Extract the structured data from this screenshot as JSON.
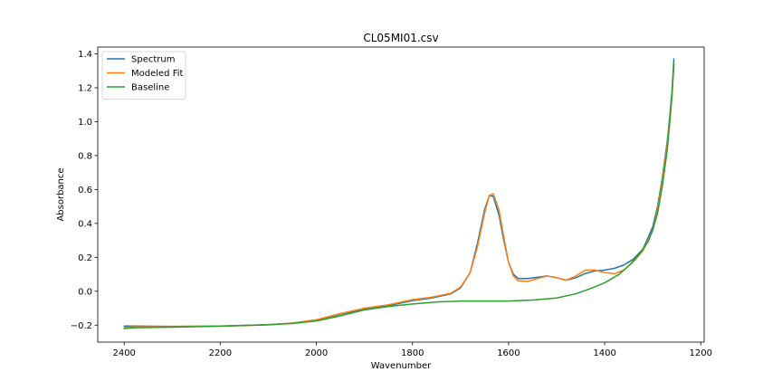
{
  "chart_data": {
    "type": "line",
    "title": "CL05MI01.csv",
    "xlabel": "Wavenumber",
    "ylabel": "Absorbance",
    "xlim": [
      2455,
      1193
    ],
    "ylim": [
      -0.3,
      1.44
    ],
    "x_reversed": true,
    "xticks": [
      2400,
      2200,
      2000,
      1800,
      1600,
      1400,
      1200
    ],
    "xtick_labels": [
      "2400",
      "2200",
      "2000",
      "1800",
      "1600",
      "1400",
      "1200"
    ],
    "yticks": [
      -0.2,
      0.0,
      0.2,
      0.4,
      0.6,
      0.8,
      1.0,
      1.2,
      1.4
    ],
    "ytick_labels": [
      "−0.2",
      "0.0",
      "0.2",
      "0.4",
      "0.6",
      "0.8",
      "1.0",
      "1.2",
      "1.4"
    ],
    "grid": false,
    "legend_position": "top-left",
    "series": [
      {
        "name": "Spectrum",
        "color": "#1f77b4",
        "x": [
          2400,
          2380,
          2300,
          2200,
          2100,
          2050,
          2000,
          1950,
          1900,
          1850,
          1800,
          1760,
          1720,
          1700,
          1680,
          1665,
          1650,
          1640,
          1632,
          1620,
          1610,
          1600,
          1590,
          1580,
          1560,
          1540,
          1520,
          1500,
          1480,
          1460,
          1440,
          1420,
          1400,
          1380,
          1360,
          1340,
          1320,
          1300,
          1290,
          1280,
          1270,
          1265,
          1260,
          1256
        ],
        "y": [
          -0.205,
          -0.205,
          -0.207,
          -0.205,
          -0.197,
          -0.188,
          -0.17,
          -0.135,
          -0.105,
          -0.085,
          -0.055,
          -0.04,
          -0.015,
          0.02,
          0.11,
          0.28,
          0.48,
          0.565,
          0.56,
          0.45,
          0.3,
          0.17,
          0.1,
          0.075,
          0.075,
          0.082,
          0.09,
          0.08,
          0.065,
          0.08,
          0.105,
          0.12,
          0.125,
          0.135,
          0.155,
          0.19,
          0.25,
          0.38,
          0.5,
          0.67,
          0.88,
          1.02,
          1.18,
          1.37
        ]
      },
      {
        "name": "Modeled Fit",
        "color": "#ff7f0e",
        "x": [
          2400,
          2380,
          2300,
          2200,
          2100,
          2050,
          2000,
          1950,
          1900,
          1850,
          1800,
          1760,
          1720,
          1700,
          1680,
          1665,
          1650,
          1640,
          1632,
          1620,
          1610,
          1600,
          1590,
          1580,
          1560,
          1540,
          1520,
          1500,
          1480,
          1460,
          1440,
          1420,
          1400,
          1380,
          1360,
          1340,
          1320,
          1300,
          1290,
          1280,
          1270,
          1265,
          1260,
          1256
        ],
        "y": [
          -0.213,
          -0.21,
          -0.21,
          -0.206,
          -0.198,
          -0.188,
          -0.168,
          -0.132,
          -0.1,
          -0.08,
          -0.05,
          -0.035,
          -0.012,
          0.025,
          0.11,
          0.26,
          0.46,
          0.565,
          0.575,
          0.48,
          0.32,
          0.17,
          0.09,
          0.062,
          0.058,
          0.075,
          0.09,
          0.08,
          0.065,
          0.09,
          0.125,
          0.125,
          0.11,
          0.103,
          0.125,
          0.175,
          0.24,
          0.36,
          0.48,
          0.65,
          0.86,
          1.0,
          1.16,
          1.34
        ]
      },
      {
        "name": "Baseline",
        "color": "#2ca02c",
        "x": [
          2400,
          2380,
          2300,
          2200,
          2100,
          2050,
          2000,
          1950,
          1900,
          1850,
          1800,
          1750,
          1700,
          1650,
          1600,
          1550,
          1500,
          1460,
          1430,
          1400,
          1370,
          1350,
          1330,
          1310,
          1300,
          1290,
          1280,
          1270,
          1265,
          1260,
          1256
        ],
        "y": [
          -0.22,
          -0.215,
          -0.212,
          -0.206,
          -0.198,
          -0.19,
          -0.175,
          -0.145,
          -0.11,
          -0.09,
          -0.075,
          -0.063,
          -0.058,
          -0.058,
          -0.058,
          -0.052,
          -0.04,
          -0.015,
          0.015,
          0.05,
          0.1,
          0.15,
          0.21,
          0.29,
          0.36,
          0.46,
          0.62,
          0.83,
          0.98,
          1.15,
          1.34
        ]
      }
    ]
  }
}
